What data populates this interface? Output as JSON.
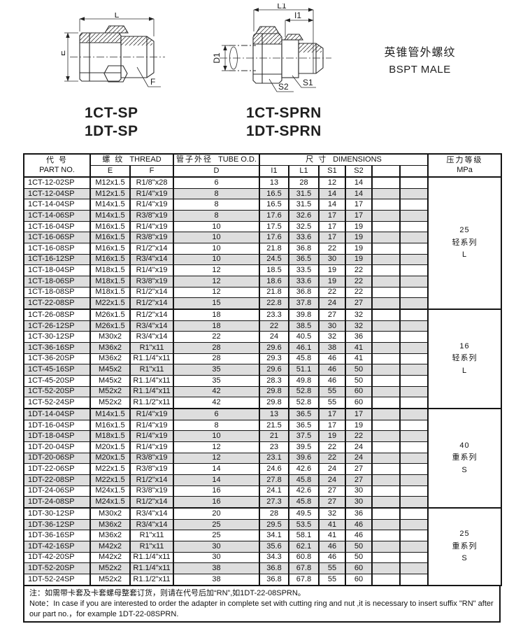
{
  "page": {
    "title_cn": "英锥管外螺纹",
    "title_en": "BSPT MALE"
  },
  "colors": {
    "row_shade": "#dedede",
    "line": "#141414"
  },
  "drawings": {
    "left": {
      "labels": {
        "L": "L",
        "E": "E",
        "F": "F"
      },
      "captions": [
        "1CT-SP",
        "1DT-SP"
      ]
    },
    "right": {
      "labels": {
        "L1": "L1",
        "I1": "I1",
        "D1": "D1",
        "S1": "S1",
        "S2": "S2"
      },
      "captions": [
        "1CT-SPRN",
        "1DT-SPRN"
      ]
    }
  },
  "table": {
    "headers": {
      "part_no_cn": "代  号",
      "part_no_en": "PART NO.",
      "thread_cn": "螺  纹",
      "thread_en": "THREAD",
      "thread_e": "E",
      "thread_f": "F",
      "tube_cn": "管子外径",
      "tube_en": "TUBE O.D.",
      "tube_d": "D",
      "dims_cn": "尺  寸",
      "dims_en": "DIMENSIONS",
      "dim_cols": [
        "I1",
        "L1",
        "S1",
        "S2",
        "",
        ""
      ],
      "pressure_cn": "压力等级",
      "pressure_unit": "MPa"
    },
    "rows": [
      [
        "1CT-12-02SP",
        "M12x1.5",
        "R1/8\"x28",
        "6",
        "13",
        "28",
        "12",
        "14"
      ],
      [
        "1CT-12-04SP",
        "M12x1.5",
        "R1/4\"x19",
        "8",
        "16.5",
        "31.5",
        "14",
        "14"
      ],
      [
        "1CT-14-04SP",
        "M14x1.5",
        "R1/4\"x19",
        "8",
        "16.5",
        "31.5",
        "14",
        "17"
      ],
      [
        "1CT-14-06SP",
        "M14x1.5",
        "R3/8\"x19",
        "8",
        "17.6",
        "32.6",
        "17",
        "17"
      ],
      [
        "1CT-16-04SP",
        "M16x1.5",
        "R1/4\"x19",
        "10",
        "17.5",
        "32.5",
        "17",
        "19"
      ],
      [
        "1CT-16-06SP",
        "M16x1.5",
        "R3/8\"x19",
        "10",
        "17.6",
        "33.6",
        "17",
        "19"
      ],
      [
        "1CT-16-08SP",
        "M16x1.5",
        "R1/2\"x14",
        "10",
        "21.8",
        "36.8",
        "22",
        "19"
      ],
      [
        "1CT-16-12SP",
        "M16x1.5",
        "R3/4\"x14",
        "10",
        "24.5",
        "36.5",
        "30",
        "19"
      ],
      [
        "1CT-18-04SP",
        "M18x1.5",
        "R1/4\"x19",
        "12",
        "18.5",
        "33.5",
        "19",
        "22"
      ],
      [
        "1CT-18-06SP",
        "M18x1.5",
        "R3/8\"x19",
        "12",
        "18.6",
        "33.6",
        "19",
        "22"
      ],
      [
        "1CT-18-08SP",
        "M18x1.5",
        "R1/2\"x14",
        "12",
        "21.8",
        "36.8",
        "22",
        "22"
      ],
      [
        "1CT-22-08SP",
        "M22x1.5",
        "R1/2\"x14",
        "15",
        "22.8",
        "37.8",
        "24",
        "27"
      ],
      [
        "1CT-26-08SP",
        "M26x1.5",
        "R1/2\"x14",
        "18",
        "23.3",
        "39.8",
        "27",
        "32"
      ],
      [
        "1CT-26-12SP",
        "M26x1.5",
        "R3/4\"x14",
        "18",
        "22",
        "38.5",
        "30",
        "32"
      ],
      [
        "1CT-30-12SP",
        "M30x2",
        "R3/4\"x14",
        "22",
        "24",
        "40.5",
        "32",
        "36"
      ],
      [
        "1CT-36-16SP",
        "M36x2",
        "R1\"x11",
        "28",
        "29.6",
        "46.1",
        "38",
        "41"
      ],
      [
        "1CT-36-20SP",
        "M36x2",
        "R1.1/4\"x11",
        "28",
        "29.3",
        "45.8",
        "46",
        "41"
      ],
      [
        "1CT-45-16SP",
        "M45x2",
        "R1\"x11",
        "35",
        "29.6",
        "51.1",
        "46",
        "50"
      ],
      [
        "1CT-45-20SP",
        "M45x2",
        "R1.1/4\"x11",
        "35",
        "28.3",
        "49.8",
        "46",
        "50"
      ],
      [
        "1CT-52-20SP",
        "M52x2",
        "R1.1/4\"x11",
        "42",
        "29.8",
        "52.8",
        "55",
        "60"
      ],
      [
        "1CT-52-24SP",
        "M52x2",
        "R1.1/2\"x11",
        "42",
        "29.8",
        "52.8",
        "55",
        "60"
      ],
      [
        "1DT-14-04SP",
        "M14x1.5",
        "R1/4\"x19",
        "6",
        "13",
        "36.5",
        "17",
        "17"
      ],
      [
        "1DT-16-04SP",
        "M16x1.5",
        "R1/4\"x19",
        "8",
        "21.5",
        "36.5",
        "17",
        "19"
      ],
      [
        "1DT-18-04SP",
        "M18x1.5",
        "R1/4\"x19",
        "10",
        "21",
        "37.5",
        "19",
        "22"
      ],
      [
        "1DT-20-04SP",
        "M20x1.5",
        "R1/4\"x19",
        "12",
        "23",
        "39.5",
        "22",
        "24"
      ],
      [
        "1DT-20-06SP",
        "M20x1.5",
        "R3/8\"x19",
        "12",
        "23.1",
        "39.6",
        "22",
        "24"
      ],
      [
        "1DT-22-06SP",
        "M22x1.5",
        "R3/8\"x19",
        "14",
        "24.6",
        "42.6",
        "24",
        "27"
      ],
      [
        "1DT-22-08SP",
        "M22x1.5",
        "R1/2\"x14",
        "14",
        "27.8",
        "45.8",
        "24",
        "27"
      ],
      [
        "1DT-24-06SP",
        "M24x1.5",
        "R3/8\"x19",
        "16",
        "24.1",
        "42.6",
        "27",
        "30"
      ],
      [
        "1DT-24-08SP",
        "M24x1.5",
        "R1/2\"x14",
        "16",
        "27.3",
        "45.8",
        "27",
        "30"
      ],
      [
        "1DT-30-12SP",
        "M30x2",
        "R3/4\"x14",
        "20",
        "28",
        "49.5",
        "32",
        "36"
      ],
      [
        "1DT-36-12SP",
        "M36x2",
        "R3/4\"x14",
        "25",
        "29.5",
        "53.5",
        "41",
        "46"
      ],
      [
        "1DT-36-16SP",
        "M36x2",
        "R1\"x11",
        "25",
        "34.1",
        "58.1",
        "41",
        "46"
      ],
      [
        "1DT-42-16SP",
        "M42x2",
        "R1\"x11",
        "30",
        "35.6",
        "62.1",
        "46",
        "50"
      ],
      [
        "1DT-42-20SP",
        "M42x2",
        "R1.1/4\"x11",
        "30",
        "34.3",
        "60.8",
        "46",
        "50"
      ],
      [
        "1DT-52-20SP",
        "M52x2",
        "R1.1/4\"x11",
        "38",
        "36.8",
        "67.8",
        "55",
        "60"
      ],
      [
        "1DT-52-24SP",
        "M52x2",
        "R1.1/2\"x11",
        "38",
        "36.8",
        "67.8",
        "55",
        "60"
      ]
    ],
    "groups": [
      {
        "start": 0,
        "count": 12,
        "mpa": "25",
        "series_cn": "轻系列",
        "series_code": "L"
      },
      {
        "start": 12,
        "count": 9,
        "mpa": "16",
        "series_cn": "轻系列",
        "series_code": "L"
      },
      {
        "start": 21,
        "count": 9,
        "mpa": "40",
        "series_cn": "重系列",
        "series_code": "S"
      },
      {
        "start": 30,
        "count": 7,
        "mpa": "25",
        "series_cn": "重系列",
        "series_code": "S"
      }
    ]
  },
  "notes": {
    "cn": "注：如需带卡套及卡套螺母整套订货，则请在代号后加“RN”,如1DT-22-08SPRN。",
    "en": "Note：In case if you are interested to order the adapter in complete set with cutting ring and nut ,it is necessary to insert suffix \"RN\" after our part no.，for example 1DT-22-08SPRN."
  }
}
